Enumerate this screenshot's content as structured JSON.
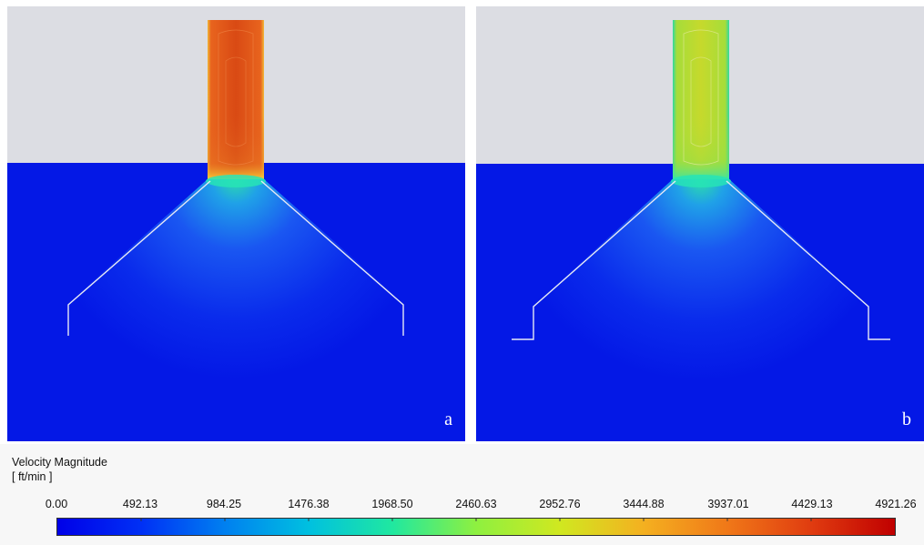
{
  "panels": [
    {
      "label": "a",
      "jet_color": "#e0521a"
    },
    {
      "label": "b",
      "jet_color": "#c9db2c"
    }
  ],
  "colors": {
    "air": "#0418e6",
    "background": "#dcdde3"
  },
  "legend": {
    "title": "Velocity Magnitude",
    "unit": "[ ft/min ]",
    "ticks": [
      "0.00",
      "492.13",
      "984.25",
      "1476.38",
      "1968.50",
      "2460.63",
      "2952.76",
      "3444.88",
      "3937.01",
      "4429.13",
      "4921.26"
    ]
  }
}
